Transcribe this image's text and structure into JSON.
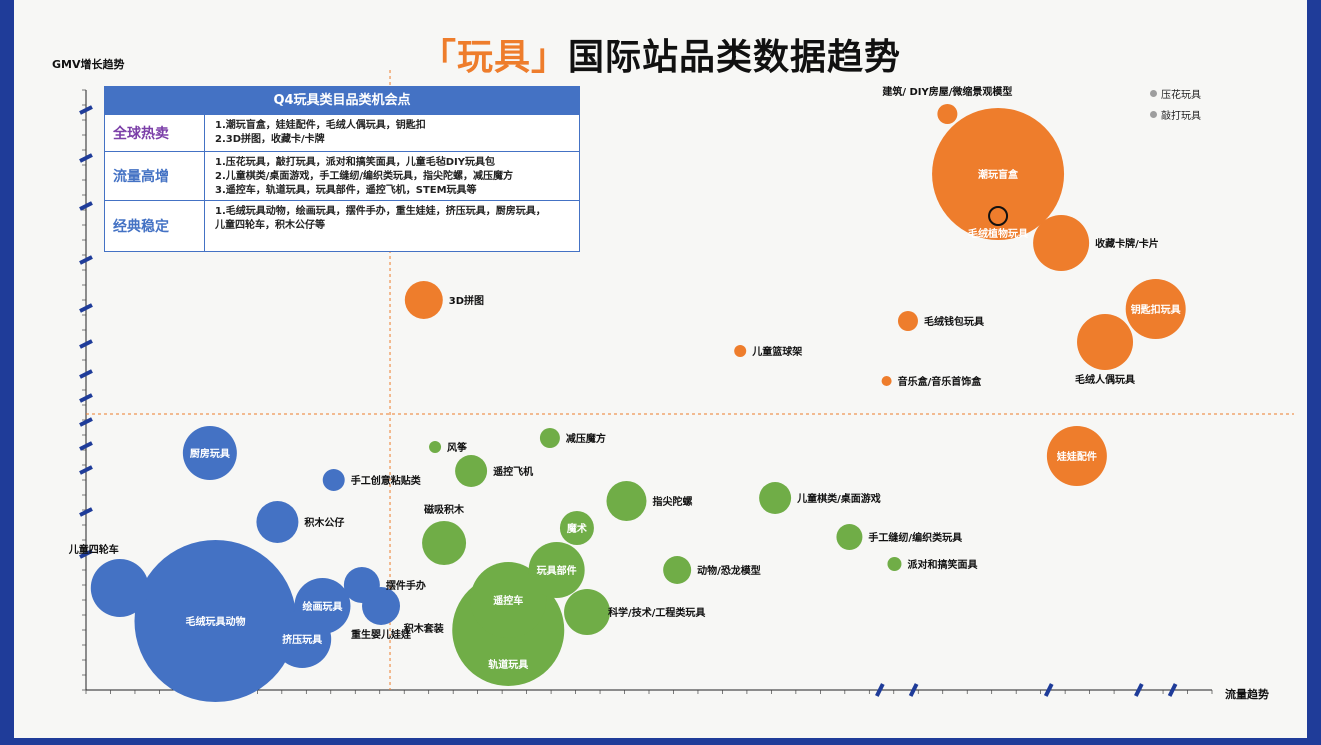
{
  "title": {
    "accent": "「玩具」",
    "main": "国际站品类数据趋势"
  },
  "legend": [
    {
      "label": "压花玩具"
    },
    {
      "label": "敲打玩具"
    }
  ],
  "opportunity_box": {
    "heading": "Q4玩具类目品类机会点",
    "rows": [
      {
        "label": "全球热卖",
        "color": "#7b3fa8",
        "lines": [
          "1.潮玩盲盒，娃娃配件，毛绒人偶玩具，钥匙扣",
          "2.3D拼图，收藏卡/卡牌"
        ]
      },
      {
        "label": "流量高增",
        "color": "#4472c4",
        "lines": [
          "1.压花玩具，敲打玩具，派对和搞笑面具，儿童毛毡DIY玩具包",
          "2.儿童棋类/桌面游戏，手工缝纫/编织类玩具，指尖陀螺，减压魔方",
          "3.遥控车，轨道玩具，玩具部件，遥控飞机，STEM玩具等"
        ]
      },
      {
        "label": "经典稳定",
        "color": "#4472c4",
        "lines": [
          "1.毛绒玩具动物，绘画玩具，摆件手办，重生娃娃，挤压玩具，厨房玩具，",
          "儿童四轮车，积木公仔等"
        ]
      }
    ]
  },
  "colors": {
    "orange": "#ee7d2c",
    "green": "#70ad47",
    "blue": "#4472c4",
    "grey": "#9e9e9e",
    "navy": "#1f3c99"
  },
  "chart_data": {
    "type": "scatter",
    "title": "「玩具」国际站品类数据趋势",
    "xlabel": "流量趋势",
    "ylabel": "GMV增长趋势",
    "xlim": [
      0,
      1000
    ],
    "ylim": [
      0,
      1000
    ],
    "divider_x": 270,
    "divider_y": 460,
    "legend_position": "top-right",
    "series": [
      {
        "color": "orange",
        "points": [
          {
            "name": "建筑/ DIY房屋/微缩景观模型",
            "x": 765,
            "y": 960,
            "size": 10,
            "label_pos": "top"
          },
          {
            "name": "潮玩盲盒",
            "x": 810,
            "y": 860,
            "size": 66,
            "label_pos": "inside"
          },
          {
            "name": "毛绒植物玩具",
            "x": 810,
            "y": 790,
            "size": 9,
            "label_pos": "below-inside",
            "outline": true
          },
          {
            "name": "收藏卡牌/卡片",
            "x": 866,
            "y": 745,
            "size": 28,
            "label_pos": "right"
          },
          {
            "name": "3D拼图",
            "x": 300,
            "y": 650,
            "size": 19,
            "label_pos": "right"
          },
          {
            "name": "钥匙扣玩具",
            "x": 950,
            "y": 635,
            "size": 30,
            "label_pos": "inside"
          },
          {
            "name": "毛绒钱包玩具",
            "x": 730,
            "y": 615,
            "size": 10,
            "label_pos": "right"
          },
          {
            "name": "毛绒人偶玩具",
            "x": 905,
            "y": 580,
            "size": 28,
            "label_pos": "below"
          },
          {
            "name": "儿童篮球架",
            "x": 581,
            "y": 565,
            "size": 6,
            "label_pos": "right"
          },
          {
            "name": "音乐盒/音乐首饰盒",
            "x": 711,
            "y": 515,
            "size": 5,
            "label_pos": "right"
          },
          {
            "name": "娃娃配件",
            "x": 880,
            "y": 390,
            "size": 30,
            "label_pos": "inside"
          }
        ]
      },
      {
        "color": "green",
        "points": [
          {
            "name": "减压魔方",
            "x": 412,
            "y": 420,
            "size": 10,
            "label_pos": "right"
          },
          {
            "name": "风筝",
            "x": 310,
            "y": 405,
            "size": 6,
            "label_pos": "right"
          },
          {
            "name": "遥控飞机",
            "x": 342,
            "y": 365,
            "size": 16,
            "label_pos": "right"
          },
          {
            "name": "指尖陀螺",
            "x": 480,
            "y": 315,
            "size": 20,
            "label_pos": "right"
          },
          {
            "name": "儿童棋类/桌面游戏",
            "x": 612,
            "y": 320,
            "size": 16,
            "label_pos": "right"
          },
          {
            "name": "魔术",
            "x": 436,
            "y": 270,
            "size": 17,
            "label_pos": "inside"
          },
          {
            "name": "磁吸积木",
            "x": 318,
            "y": 245,
            "size": 22,
            "label_pos": "above"
          },
          {
            "name": "手工缝纫/编织类玩具",
            "x": 678,
            "y": 255,
            "size": 13,
            "label_pos": "right"
          },
          {
            "name": "玩具部件",
            "x": 418,
            "y": 200,
            "size": 28,
            "label_pos": "inside"
          },
          {
            "name": "动物/恐龙模型",
            "x": 525,
            "y": 200,
            "size": 14,
            "label_pos": "right"
          },
          {
            "name": "派对和搞笑面具",
            "x": 718,
            "y": 210,
            "size": 7,
            "label_pos": "right"
          },
          {
            "name": "遥控车",
            "x": 375,
            "y": 150,
            "size": 38,
            "label_pos": "inside"
          },
          {
            "name": "科学/技术/工程类玩具",
            "x": 445,
            "y": 130,
            "size": 23,
            "label_pos": "below-right"
          },
          {
            "name": "轨道玩具",
            "x": 375,
            "y": 100,
            "size": 56,
            "label_pos": "inside-bottom"
          },
          {
            "name": "积木套装",
            "x": 355,
            "y": 110,
            "size": 0,
            "label_pos": "left-only"
          }
        ]
      },
      {
        "color": "blue",
        "points": [
          {
            "name": "厨房玩具",
            "x": 110,
            "y": 395,
            "size": 27,
            "label_pos": "inside"
          },
          {
            "name": "手工创意粘贴类",
            "x": 220,
            "y": 350,
            "size": 11,
            "label_pos": "right"
          },
          {
            "name": "积木公仔",
            "x": 170,
            "y": 280,
            "size": 21,
            "label_pos": "right"
          },
          {
            "name": "儿童四轮车",
            "x": 30,
            "y": 170,
            "size": 29,
            "label_pos": "left-top"
          },
          {
            "name": "毛绒玩具动物",
            "x": 115,
            "y": 115,
            "size": 81,
            "label_pos": "inside"
          },
          {
            "name": "绘画玩具",
            "x": 210,
            "y": 140,
            "size": 28,
            "label_pos": "inside"
          },
          {
            "name": "挤压玩具",
            "x": 192,
            "y": 85,
            "size": 29,
            "label_pos": "inside"
          },
          {
            "name": "摆件手办",
            "x": 245,
            "y": 175,
            "size": 18,
            "label_pos": "right"
          },
          {
            "name": "重生婴儿娃娃",
            "x": 262,
            "y": 140,
            "size": 19,
            "label_pos": "below"
          }
        ]
      }
    ]
  }
}
